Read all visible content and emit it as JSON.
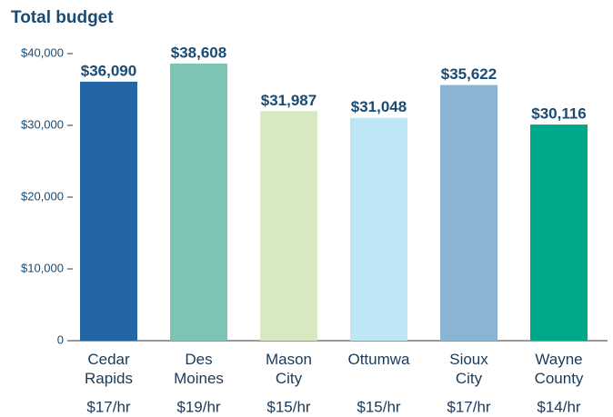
{
  "chart_data": {
    "type": "bar",
    "title": "Total budget",
    "categories": [
      "Cedar Rapids",
      "Des Moines",
      "Mason City",
      "Ottumwa",
      "Sioux City",
      "Wayne County"
    ],
    "sublabels": [
      "$17/hr",
      "$19/hr",
      "$15/hr",
      "$15/hr",
      "$17/hr",
      "$14/hr"
    ],
    "values": [
      36090,
      38608,
      31987,
      31048,
      35622,
      30116
    ],
    "value_labels": [
      "$36,090",
      "$38,608",
      "$31,987",
      "$31,048",
      "$35,622",
      "$30,116"
    ],
    "colors": [
      "#2466a5",
      "#7cc5b4",
      "#d6e9c0",
      "#bfe6f5",
      "#8ab4d4",
      "#00a88a"
    ],
    "ylim": [
      0,
      40000
    ],
    "yticks": [
      0,
      {
        "value": 10000,
        "label": "$10,000"
      },
      {
        "value": 20000,
        "label": "$20,000"
      },
      {
        "value": 30000,
        "label": "$30,000"
      },
      {
        "value": 40000,
        "label": "$40,000"
      }
    ],
    "grid": false
  }
}
